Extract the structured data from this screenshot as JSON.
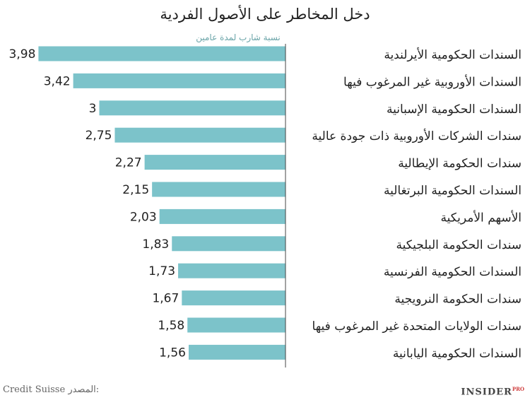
{
  "chart_data": {
    "type": "bar",
    "orientation": "horizontal",
    "title": "دخل المخاطر على الأصول الفردية",
    "subtitle": "نسبة شارب لمدة عامين",
    "categories": [
      "السندات الحكومية الأيرلندية",
      "السندات الأوروبية  غير المرغوب فيها",
      "السندات الحكومية الإسبانية",
      "سندات الشركات الأوروبية ذات جودة عالية",
      "سندات الحكومة الإيطالية",
      "السندات الحكومية البرتغالية",
      "الأسهم الأمريكية",
      "سندات الحكومة البلجيكية",
      "السندات الحكومية الفرنسية",
      "سندات الحكومة النرويجية",
      "سندات الولايات المتحدة غير المرغوب فيها",
      "السندات الحكومية اليابانية"
    ],
    "values": [
      3.98,
      3.42,
      3,
      2.75,
      2.27,
      2.15,
      2.03,
      1.83,
      1.73,
      1.67,
      1.58,
      1.56
    ],
    "value_labels": [
      "3,98",
      "3,42",
      "3",
      "2,75",
      "2,27",
      "2,15",
      "2,03",
      "1,83",
      "1,73",
      "1,67",
      "1,58",
      "1,56"
    ],
    "xlim": [
      0,
      4.44
    ],
    "grid": false,
    "bar_color": "#7cc3ca"
  },
  "footer": {
    "source_label": "المصدر:",
    "source_value": "Credit Suisse",
    "logo_text": "INSIDER",
    "logo_sup": "PRO"
  }
}
